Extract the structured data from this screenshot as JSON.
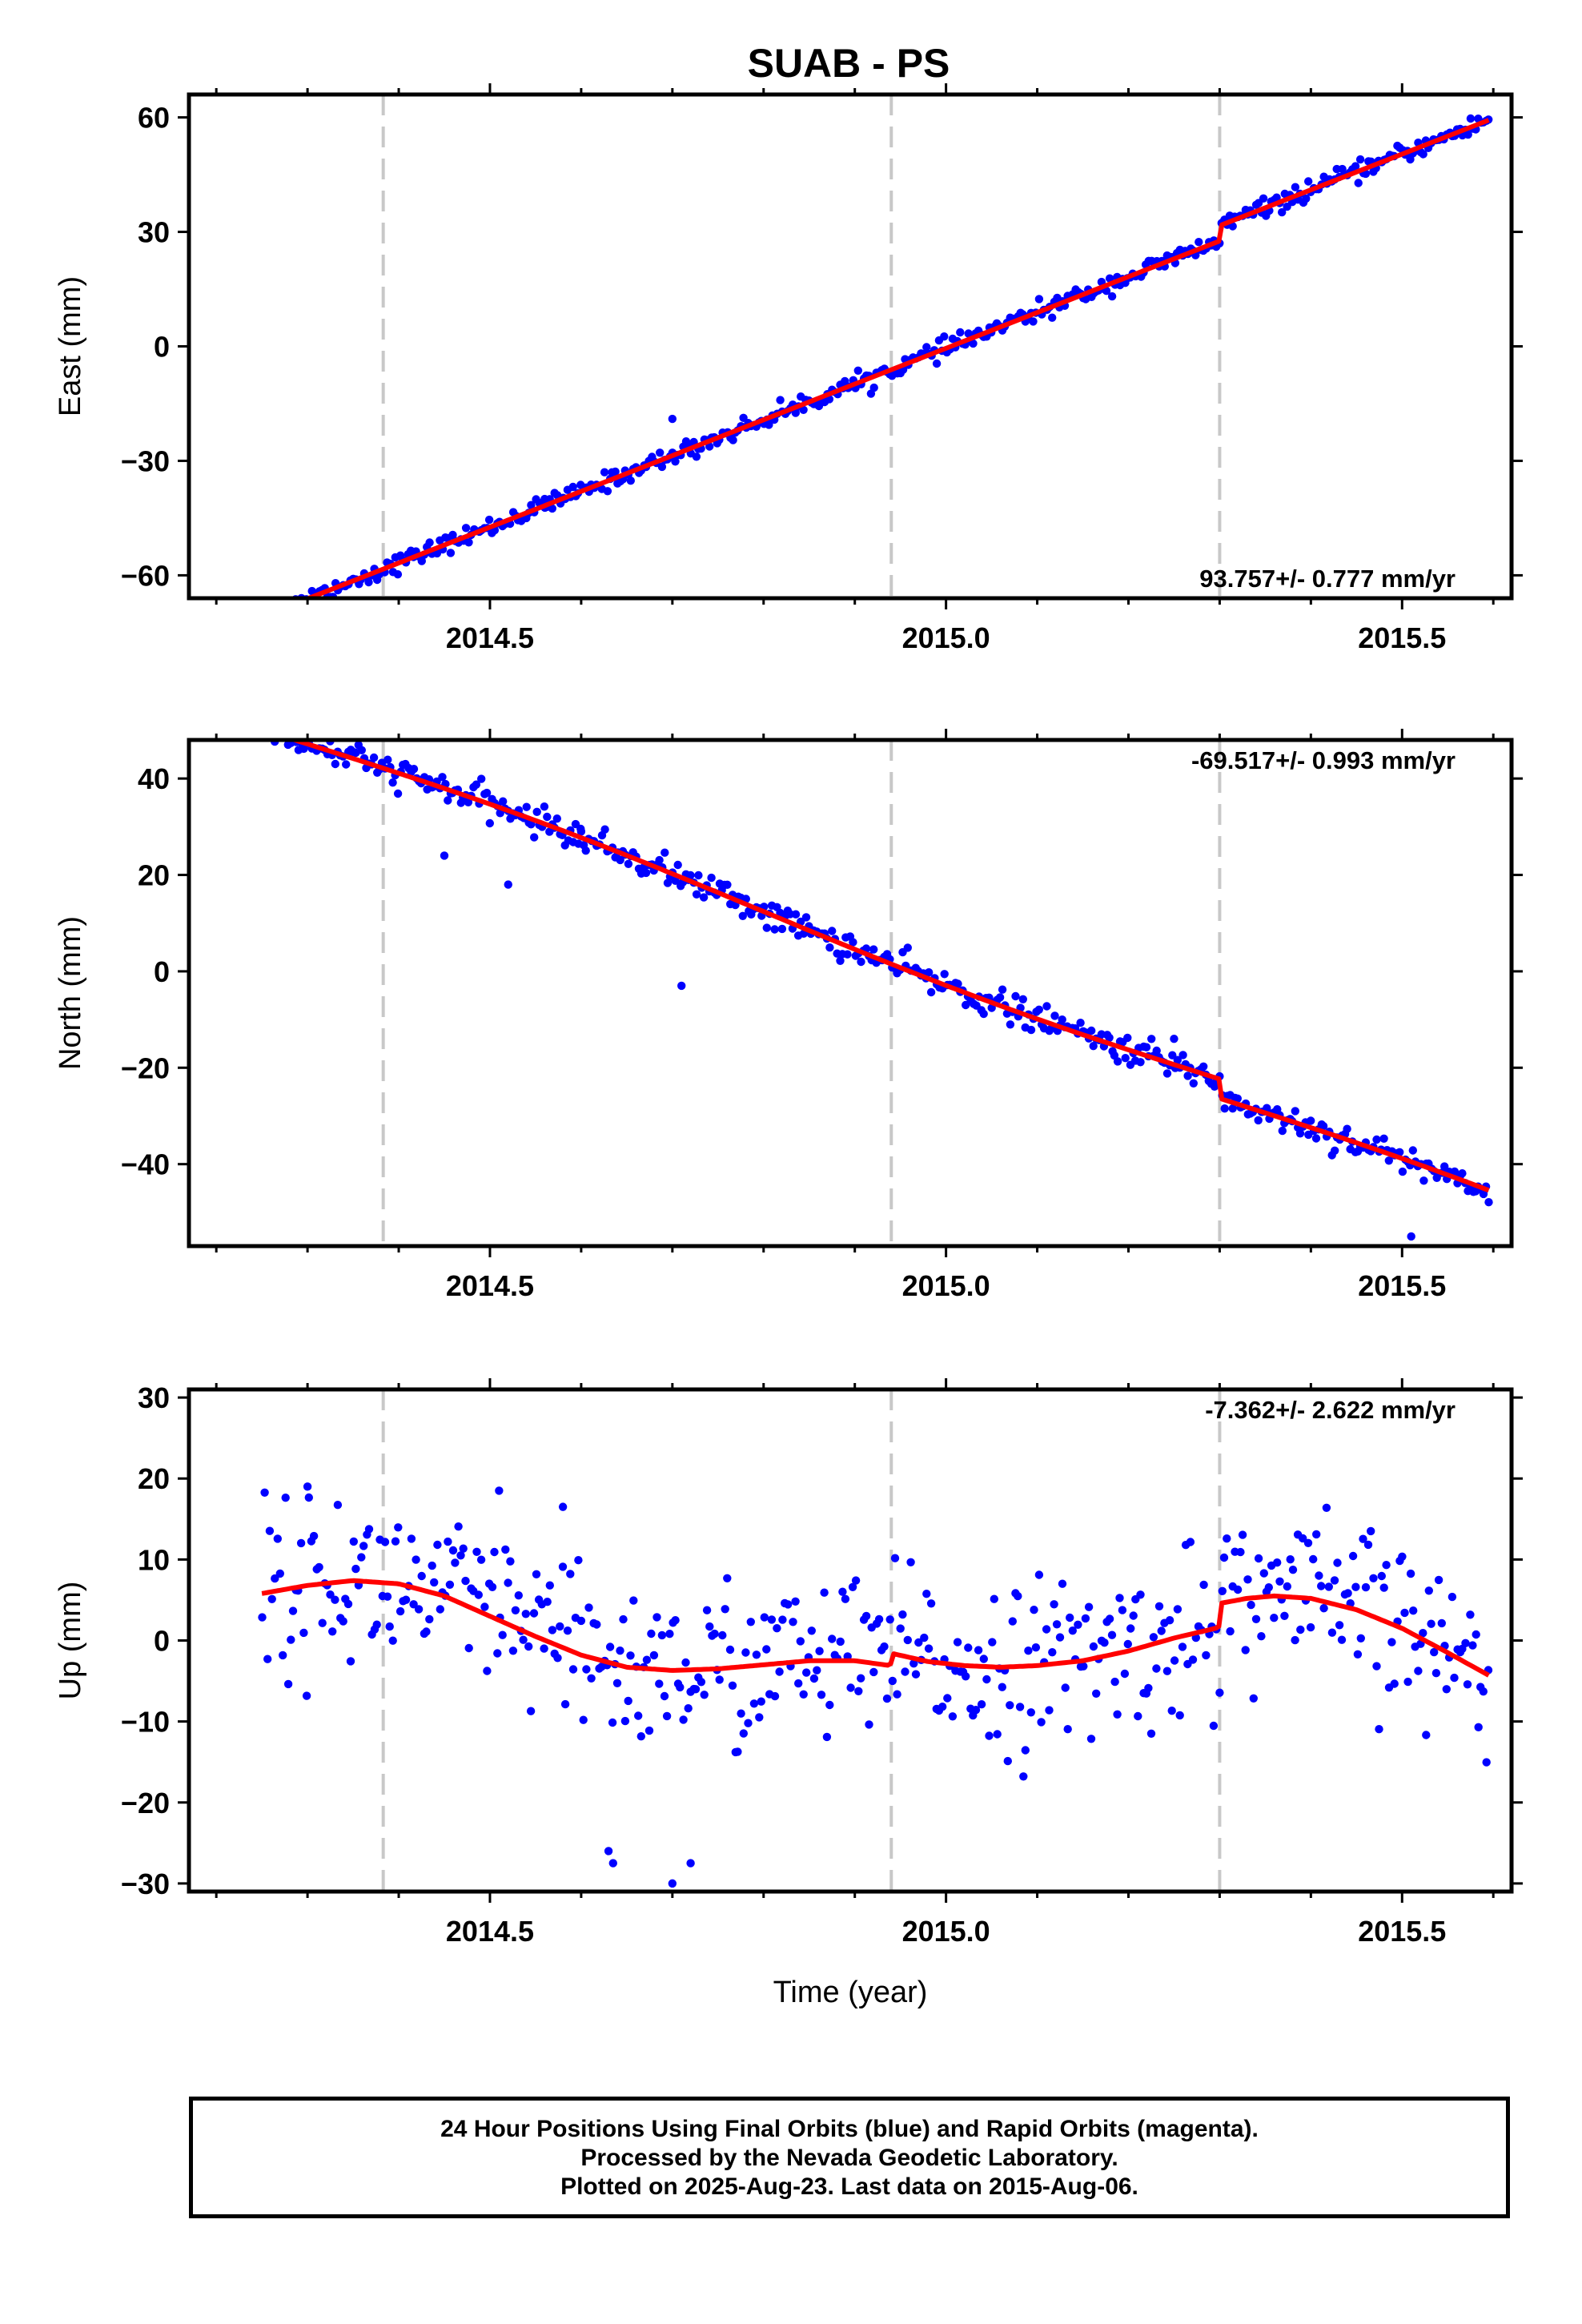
{
  "title": "SUAB - PS",
  "footer": {
    "line1": "24 Hour Positions Using Final Orbits (blue) and Rapid Orbits (magenta).",
    "line2": "Processed by the Nevada Geodetic Laboratory.",
    "line3": "Plotted on 2025-Aug-23. Last data on 2015-Aug-06."
  },
  "colors": {
    "data_points": "#0000ff",
    "model_fit": "#ff0000",
    "event_lines": "#c8c8c8"
  },
  "chart_data": [
    {
      "type": "scatter",
      "ylabel": "East (mm)",
      "xlabel": "",
      "xlim": [
        2014.17,
        2015.62
      ],
      "ylim": [
        -66,
        66
      ],
      "xticks": [
        "2014.5",
        "2015.0",
        "2015.5"
      ],
      "yticks": [
        -60,
        -30,
        0,
        30,
        60
      ],
      "ytick_labels": [
        "−60",
        "−30",
        "0",
        "30",
        "60"
      ],
      "rate_annotation": "93.757+/- 0.777 mm/yr",
      "rate_position": "bottom-right",
      "event_lines_x": [
        2014.383,
        2014.94,
        2015.3
      ],
      "trend": {
        "slope_mm_per_yr": 93.757,
        "value_at_2015": 1.5
      },
      "offsets": [
        {
          "x": 2015.3,
          "dy": 4
        }
      ],
      "scatter_sd_mm": 1.2,
      "seasonal_amp_mm": 0,
      "outliers": [
        {
          "x": 2014.56,
          "y": -40
        },
        {
          "x": 2014.7,
          "y": -19
        }
      ],
      "x_range": [
        2014.25,
        2015.595
      ]
    },
    {
      "type": "scatter",
      "ylabel": "North (mm)",
      "xlabel": "",
      "xlim": [
        2014.17,
        2015.62
      ],
      "ylim": [
        -57,
        48
      ],
      "xticks": [
        "2014.5",
        "2015.0",
        "2015.5"
      ],
      "yticks": [
        -40,
        -20,
        0,
        20,
        40
      ],
      "ytick_labels": [
        "−40",
        "−20",
        "0",
        "20",
        "40"
      ],
      "rate_annotation": "-69.517+/- 0.993 mm/yr",
      "rate_position": "top-right",
      "event_lines_x": [
        2014.383,
        2014.94,
        2015.3
      ],
      "trend": {
        "slope_mm_per_yr": -69.517,
        "value_at_2015": -3.5
      },
      "offsets": [
        {
          "x": 2015.3,
          "dy": -4
        }
      ],
      "scatter_sd_mm": 1.5,
      "seasonal_amp_mm": 1.5,
      "outliers": [
        {
          "x": 2014.71,
          "y": -3
        },
        {
          "x": 2015.25,
          "y": -14
        },
        {
          "x": 2015.51,
          "y": -55
        },
        {
          "x": 2014.45,
          "y": 24
        },
        {
          "x": 2014.6,
          "y": 29
        },
        {
          "x": 2014.52,
          "y": 18
        }
      ],
      "x_range": [
        2014.25,
        2015.595
      ]
    },
    {
      "type": "scatter",
      "ylabel": "Up (mm)",
      "xlabel": "Time (year)",
      "xlim": [
        2014.17,
        2015.62
      ],
      "ylim": [
        -31,
        31
      ],
      "xticks": [
        "2014.5",
        "2015.0",
        "2015.5"
      ],
      "yticks": [
        -30,
        -20,
        -10,
        0,
        10,
        20,
        30
      ],
      "ytick_labels": [
        "−30",
        "−20",
        "−10",
        "0",
        "10",
        "20",
        "30"
      ],
      "rate_annotation": "-7.362+/- 2.622 mm/yr",
      "rate_position": "top-right",
      "event_lines_x": [
        2014.383,
        2014.94,
        2015.3
      ],
      "fit_curve": [
        [
          2014.25,
          5.8
        ],
        [
          2014.3,
          6.8
        ],
        [
          2014.35,
          7.4
        ],
        [
          2014.4,
          7.0
        ],
        [
          2014.45,
          5.5
        ],
        [
          2014.5,
          3.0
        ],
        [
          2014.55,
          0.5
        ],
        [
          2014.6,
          -1.8
        ],
        [
          2014.65,
          -3.3
        ],
        [
          2014.7,
          -3.7
        ],
        [
          2014.75,
          -3.5
        ],
        [
          2014.8,
          -3.0
        ],
        [
          2014.85,
          -2.5
        ],
        [
          2014.9,
          -2.5
        ],
        [
          2014.939,
          -3.1
        ],
        [
          2014.941,
          -1.6
        ],
        [
          2014.98,
          -2.6
        ],
        [
          2015.02,
          -3.1
        ],
        [
          2015.06,
          -3.3
        ],
        [
          2015.1,
          -3.1
        ],
        [
          2015.15,
          -2.5
        ],
        [
          2015.2,
          -1.3
        ],
        [
          2015.25,
          0.3
        ],
        [
          2015.299,
          1.6
        ],
        [
          2015.301,
          4.6
        ],
        [
          2015.33,
          5.2
        ],
        [
          2015.36,
          5.5
        ],
        [
          2015.4,
          5.2
        ],
        [
          2015.45,
          3.8
        ],
        [
          2015.5,
          1.5
        ],
        [
          2015.55,
          -1.5
        ],
        [
          2015.595,
          -4.3
        ]
      ],
      "scatter_sd_mm": 5.2,
      "outliers": [
        {
          "x": 2014.63,
          "y": -26
        },
        {
          "x": 2014.635,
          "y": -27.5
        },
        {
          "x": 2014.7,
          "y": -30
        },
        {
          "x": 2014.72,
          "y": -27.5
        },
        {
          "x": 2014.3,
          "y": 19
        },
        {
          "x": 2014.51,
          "y": 18.5
        },
        {
          "x": 2014.58,
          "y": 16.5
        }
      ],
      "x_range": [
        2014.25,
        2015.595
      ]
    }
  ]
}
